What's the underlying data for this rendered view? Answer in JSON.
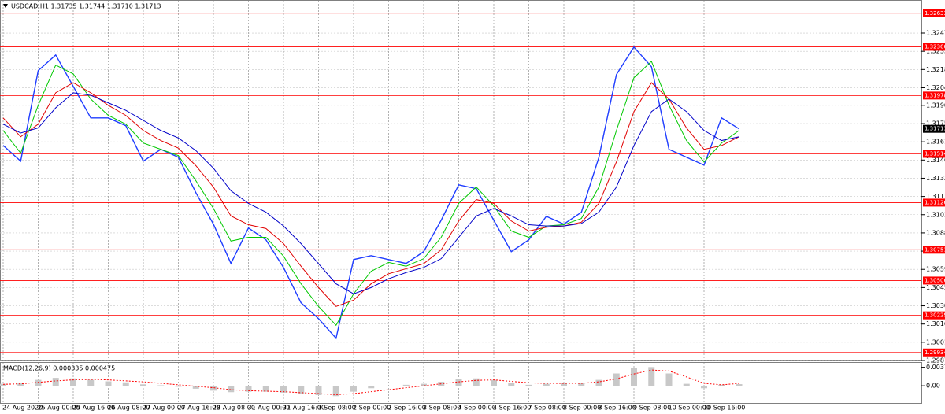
{
  "chart_data": [
    {
      "type": "line",
      "title": "USDCAD,H1  1.31735 1.31744 1.31710 1.31713",
      "categories": [
        "24 Aug 2020",
        null,
        "25 Aug 00:00",
        null,
        "25 Aug 16:00",
        null,
        "26 Aug 08:00",
        null,
        "27 Aug 00:00",
        null,
        "27 Aug 16:00",
        null,
        "28 Aug 08:00",
        null,
        "31 Aug 00:00",
        null,
        "31 Aug 16:00",
        null,
        "1 Sep 08:00",
        null,
        "2 Sep 00:00",
        null,
        "2 Sep 16:00",
        null,
        "3 Sep 08:00",
        null,
        "4 Sep 00:00",
        null,
        "4 Sep 16:00",
        null,
        "7 Sep 08:00",
        null,
        "8 Sep 00:00",
        null,
        "8 Sep 16:00",
        null,
        "9 Sep 08:00",
        null,
        "10 Sep 00:00",
        null,
        "10 Sep 16:00",
        null,
        null
      ],
      "series": [
        {
          "color": "#1e3cff",
          "values": [
            1.31581,
            1.31456,
            1.32176,
            1.32301,
            1.32051,
            1.318,
            1.318,
            1.31738,
            1.31456,
            1.3155,
            1.31487,
            1.31205,
            1.30955,
            1.30642,
            1.30924,
            1.3083,
            1.3061,
            1.30329,
            1.30203,
            1.30047,
            1.30673,
            1.30704,
            1.30673,
            1.30642,
            1.30736,
            1.30986,
            1.31268,
            1.31237,
            1.30986,
            1.30736,
            1.3083,
            1.31017,
            1.30955,
            1.31049,
            1.31487,
            1.32145,
            1.32364,
            1.32207,
            1.3155,
            1.31487,
            1.31424,
            1.318,
            1.31713
          ]
        },
        {
          "color": "#00c800",
          "values": [
            1.317,
            1.3152,
            1.319,
            1.3222,
            1.3215,
            1.3195,
            1.3182,
            1.3175,
            1.316,
            1.3155,
            1.315,
            1.313,
            1.3108,
            1.3082,
            1.3085,
            1.3085,
            1.307,
            1.3048,
            1.303,
            1.3015,
            1.304,
            1.3058,
            1.3065,
            1.3062,
            1.3068,
            1.3085,
            1.3112,
            1.3125,
            1.311,
            1.309,
            1.3085,
            1.3094,
            1.3095,
            1.31,
            1.3125,
            1.317,
            1.3212,
            1.3225,
            1.319,
            1.3162,
            1.3145,
            1.316,
            1.317
          ]
        },
        {
          "color": "#e00000",
          "values": [
            1.318,
            1.3165,
            1.3175,
            1.32,
            1.3208,
            1.32,
            1.319,
            1.3182,
            1.317,
            1.3162,
            1.3156,
            1.3142,
            1.3125,
            1.3102,
            1.3095,
            1.3092,
            1.308,
            1.3062,
            1.3045,
            1.303,
            1.3035,
            1.3048,
            1.3056,
            1.306,
            1.3064,
            1.3075,
            1.3098,
            1.3115,
            1.3112,
            1.3098,
            1.309,
            1.3093,
            1.3094,
            1.3097,
            1.3112,
            1.3145,
            1.3185,
            1.3208,
            1.3195,
            1.3172,
            1.3155,
            1.3158,
            1.3165
          ]
        },
        {
          "color": "#0000c8",
          "values": [
            1.3175,
            1.3168,
            1.3172,
            1.3188,
            1.32,
            1.3198,
            1.3192,
            1.3186,
            1.3178,
            1.317,
            1.3164,
            1.3154,
            1.314,
            1.3122,
            1.3112,
            1.3105,
            1.3094,
            1.308,
            1.3064,
            1.3048,
            1.304,
            1.3045,
            1.3052,
            1.3057,
            1.3061,
            1.3068,
            1.3085,
            1.3102,
            1.3108,
            1.3102,
            1.3095,
            1.3094,
            1.3094,
            1.3096,
            1.3105,
            1.3125,
            1.3158,
            1.3185,
            1.3195,
            1.3185,
            1.317,
            1.3162,
            1.3165
          ]
        }
      ],
      "ylim": [
        1.2987,
        1.32688
      ],
      "yticks": [
        1.32475,
        {
          "value": 1.3233,
          "label": "1.32330"
        },
        1.32185,
        {
          "value": 1.3204,
          "label": "1.32040"
        },
        {
          "value": 1.319,
          "label": "1.31900"
        },
        1.31755,
        {
          "value": 1.3161,
          "label": "1.31610"
        },
        1.31465,
        {
          "value": 1.3132,
          "label": "1.31320"
        },
        1.31175,
        {
          "value": 1.3103,
          "label": "1.31030"
        },
        1.30885,
        {
          "value": 1.3074,
          "label": "1.30740"
        },
        1.30595,
        {
          "value": 1.3045,
          "label": "1.30450"
        },
        1.30305,
        {
          "value": 1.3016,
          "label": "1.30160"
        },
        1.30015,
        {
          "value": 1.2987,
          "label": "1.29870"
        }
      ],
      "levels": [
        1.32633,
        1.32366,
        1.31978,
        1.31514,
        1.31126,
        1.30751,
        1.30506,
        1.30229,
        1.29934
      ],
      "level_color": "#ff0000",
      "last_price": 1.31713,
      "grid": true
    },
    {
      "type": "bar",
      "title": "MACD(12,26,9) 0.000335 0.000475",
      "values": [
        0.0004,
        0.0006,
        0.0012,
        0.0016,
        0.0015,
        0.0012,
        0.0009,
        0.0007,
        0.0003,
        0.0001,
        -0.0002,
        -0.0006,
        -0.001,
        -0.0013,
        -0.0012,
        -0.0012,
        -0.0014,
        -0.0017,
        -0.0019,
        -0.0021,
        -0.0012,
        -0.0005,
        -0.0001,
        0.0002,
        0.0004,
        0.0008,
        0.0013,
        0.0015,
        0.0012,
        0.0005,
        0.0002,
        0.0004,
        0.0005,
        0.0006,
        0.0012,
        0.0025,
        0.0036,
        0.0038,
        0.0025,
        0.0004,
        -0.0005,
        0.0002,
        0.000335
      ],
      "color": "#c8c8c8",
      "signal": {
        "color": "#ff0000",
        "values": [
          0.0003,
          0.0004,
          0.0007,
          0.001,
          0.0012,
          0.0013,
          0.0012,
          0.001,
          0.0008,
          0.0005,
          0.0002,
          -0.0001,
          -0.0004,
          -0.0008,
          -0.001,
          -0.0011,
          -0.0012,
          -0.0014,
          -0.0016,
          -0.0018,
          -0.0016,
          -0.0012,
          -0.0008,
          -0.0004,
          0,
          0.0004,
          0.0008,
          0.0011,
          0.0012,
          0.0009,
          0.0006,
          0.0005,
          0.0005,
          0.0005,
          0.0008,
          0.0014,
          0.0024,
          0.0032,
          0.003,
          0.0018,
          0.0005,
          0.0002,
          0.000475
        ]
      },
      "ylim": [
        -0.0035,
        0.0045
      ],
      "yticks": [
        0.00376,
        {
          "value": 0,
          "label": "0.00"
        }
      ]
    }
  ]
}
